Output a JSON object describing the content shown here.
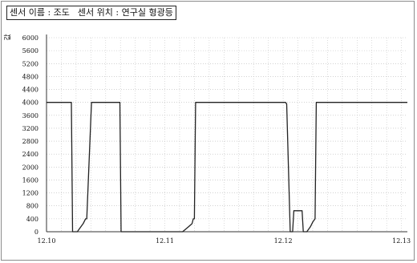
{
  "header": {
    "sensor_name": "센서 이름 : 조도",
    "sensor_location": "센서 위치 : 연구실 형광등"
  },
  "chart_data": {
    "type": "line",
    "ylabel": "값",
    "ylim": [
      0,
      6000
    ],
    "yticks": [
      0,
      400,
      800,
      1200,
      1600,
      2000,
      2400,
      2800,
      3200,
      3600,
      4000,
      4400,
      4800,
      5200,
      5600,
      6000
    ],
    "xlim": [
      0,
      3.05
    ],
    "xticks": [
      {
        "value": 0,
        "label": "12.10"
      },
      {
        "value": 1,
        "label": "12.11"
      },
      {
        "value": 2,
        "label": "12.12"
      },
      {
        "value": 3,
        "label": "12.13"
      }
    ],
    "grid": true,
    "series": [
      {
        "color": "#222222",
        "x": [
          0,
          0.21,
          0.22,
          0.26,
          0.29,
          0.31,
          0.33,
          0.34,
          0.38,
          0.62,
          0.63,
          0.65,
          0.68,
          0.7,
          0.72,
          0.73,
          0.77,
          0.95,
          0.97,
          0.98,
          1.1,
          1.11,
          1.15,
          1.2,
          1.23,
          1.24,
          1.25,
          1.26,
          1.27,
          1.28,
          1.4,
          2.02,
          2.03,
          2.06,
          2.08,
          2.09,
          2.1,
          2.16,
          2.17,
          2.2,
          2.23,
          2.25,
          2.27,
          2.28,
          2.33,
          3.05
        ],
        "y": [
          4000,
          4000,
          0,
          0,
          150,
          250,
          400,
          400,
          4000,
          4000,
          0,
          0,
          0,
          0,
          0,
          0,
          0,
          0,
          0,
          0,
          0,
          0,
          0,
          150,
          250,
          400,
          400,
          4000,
          4000,
          4000,
          4000,
          4000,
          3950,
          0,
          0,
          650,
          650,
          650,
          0,
          0,
          150,
          300,
          400,
          4000,
          4000,
          4000
        ]
      }
    ]
  }
}
